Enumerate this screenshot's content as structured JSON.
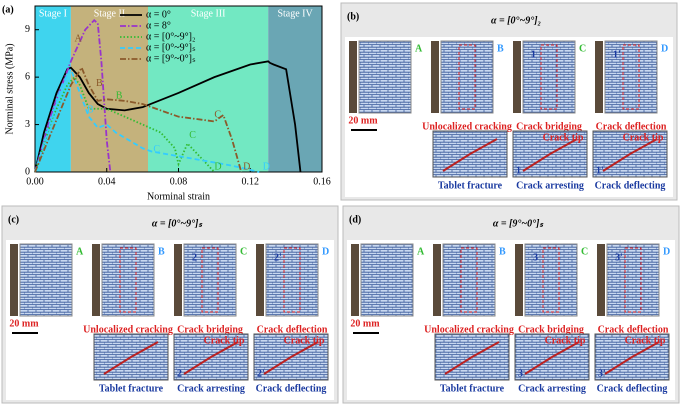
{
  "chart_data": {
    "type": "line",
    "label": "(a)",
    "x_label": "Norminal strain",
    "y_label": "Norminal stress (MPa)",
    "xlim": [
      0,
      0.16
    ],
    "xticks": [
      {
        "value": 0,
        "label": "0.00"
      },
      0.04,
      0.08,
      0.12,
      0.16
    ],
    "ylim": [
      0,
      10.5
    ],
    "yticks": [
      0,
      3,
      6,
      9
    ],
    "stages": [
      {
        "name": "Stage I",
        "start": 0,
        "end": 0.02,
        "color": "#3fd4ee"
      },
      {
        "name": "Stage II",
        "start": 0.02,
        "end": 0.063,
        "color": "#c4b27c"
      },
      {
        "name": "Stage III",
        "start": 0.063,
        "end": 0.13,
        "color": "#72e8c2"
      },
      {
        "name": "Stage IV",
        "start": 0.13,
        "end": 0.16,
        "color": "#6aa6b4"
      }
    ],
    "series": [
      {
        "name": "α = 0°",
        "color": "#000000",
        "dash": "solid",
        "x": [
          0,
          0.005,
          0.012,
          0.018,
          0.02,
          0.025,
          0.03,
          0.035,
          0.04,
          0.05,
          0.06,
          0.08,
          0.1,
          0.12,
          0.13,
          0.131,
          0.133,
          0.14,
          0.145,
          0.148
        ],
        "values": [
          0,
          2.5,
          5,
          6.5,
          6.6,
          6,
          5,
          4.3,
          4,
          3.9,
          4.1,
          5,
          6,
          6.8,
          7,
          6.9,
          6.8,
          6.5,
          3,
          0
        ]
      },
      {
        "name": "α = 8°",
        "color": "#9933cc",
        "dash": "dashdot",
        "x": [
          0,
          0.01,
          0.02,
          0.028,
          0.033,
          0.035,
          0.037,
          0.04,
          0.042
        ],
        "values": [
          0,
          4,
          7,
          9,
          9.6,
          9.4,
          7,
          2,
          0
        ]
      },
      {
        "name": "α = [0°~9°]₂",
        "color": "#33bb33",
        "dash": "dotted",
        "x": [
          0,
          0.01,
          0.018,
          0.022,
          0.025,
          0.03,
          0.04,
          0.05,
          0.06,
          0.07,
          0.078,
          0.08,
          0.085,
          0.09,
          0.1
        ],
        "values": [
          0,
          3.5,
          5.5,
          6,
          5.5,
          4,
          4,
          3.5,
          3,
          2.5,
          1.5,
          0.5,
          1.8,
          1.2,
          0
        ]
      },
      {
        "name": "α = [0°~9°]ₛ",
        "color": "#33ccff",
        "dash": "dashed",
        "x": [
          0,
          0.015,
          0.02,
          0.025,
          0.03,
          0.035,
          0.04,
          0.045,
          0.06,
          0.065,
          0.09,
          0.11,
          0.125
        ],
        "values": [
          0,
          5.5,
          6.5,
          5,
          3.5,
          2.8,
          3,
          2.5,
          1.5,
          1.3,
          0.8,
          0.4,
          0
        ]
      },
      {
        "name": "α = [9°~0°]ₛ",
        "color": "#8b5a2b",
        "dash": "dashdot",
        "x": [
          0,
          0.02,
          0.026,
          0.03,
          0.035,
          0.04,
          0.05,
          0.06,
          0.08,
          0.1,
          0.105,
          0.11,
          0.115
        ],
        "values": [
          0,
          5.5,
          6.6,
          5.5,
          4.5,
          4.6,
          4.5,
          4.3,
          3.5,
          3.2,
          3.6,
          2,
          0
        ]
      }
    ],
    "annotations": [
      {
        "text": "A",
        "x": 0.022,
        "y": 8.4,
        "color": "#8b5a2b"
      },
      {
        "text": "B",
        "x": 0.034,
        "y": 5.6,
        "color": "#8b5a2b"
      },
      {
        "text": "B",
        "x": 0.045,
        "y": 4.8,
        "color": "#33bb33"
      },
      {
        "text": "B",
        "x": 0.029,
        "y": 3.9,
        "color": "#33ccff"
      },
      {
        "text": "C",
        "x": 0.1,
        "y": 3.6,
        "color": "#8b5a2b"
      },
      {
        "text": "C",
        "x": 0.086,
        "y": 2.3,
        "color": "#33bb33"
      },
      {
        "text": "C",
        "x": 0.066,
        "y": 1.4,
        "color": "#33ccff"
      },
      {
        "text": "D",
        "x": 0.1,
        "y": 0.3,
        "color": "#33bb33"
      },
      {
        "text": "D",
        "x": 0.116,
        "y": 0.3,
        "color": "#8b5a2b"
      },
      {
        "text": "D",
        "x": 0.127,
        "y": 0.3,
        "color": "#33ccff"
      }
    ],
    "legend": "top"
  },
  "panels": [
    {
      "label": "(b)",
      "title": "α = [0°~9°]₂",
      "stage_labels": [
        "A",
        "B",
        "C",
        "D"
      ],
      "scale_bar": "20 mm",
      "captions": [
        "Unlocalized cracking",
        "Crack bridging",
        "Crack deflection"
      ],
      "markers": [
        "1",
        "1'"
      ],
      "insets": [
        {
          "caption": "Tablet fracture"
        },
        {
          "caption": "Crack arresting",
          "marker": "1",
          "note": "Crack tip"
        },
        {
          "caption": "Crack deflecting",
          "marker": "1'",
          "note": "Crack tip"
        }
      ]
    },
    {
      "label": "(c)",
      "title": "α = [0°~9°]ₛ",
      "stage_labels": [
        "A",
        "B",
        "C",
        "D"
      ],
      "scale_bar": "20 mm",
      "captions": [
        "Unlocalized cracking",
        "Crack bridging",
        "Crack deflection"
      ],
      "markers": [
        "2",
        "2'"
      ],
      "insets": [
        {
          "caption": "Tablet fracture"
        },
        {
          "caption": "Crack arresting",
          "marker": "2",
          "note": "Crack tip"
        },
        {
          "caption": "Crack deflecting",
          "marker": "2'",
          "note": "Crack tip"
        }
      ]
    },
    {
      "label": "(d)",
      "title": "α = [9°~0°]ₛ",
      "stage_labels": [
        "A",
        "B",
        "C",
        "D"
      ],
      "scale_bar": "20 mm",
      "captions": [
        "Unlocalized cracking",
        "Crack bridging",
        "Crack deflection"
      ],
      "markers": [
        "3",
        "3'"
      ],
      "insets": [
        {
          "caption": "Tablet fracture"
        },
        {
          "caption": "Crack arresting",
          "marker": "3",
          "note": "Crack tip"
        },
        {
          "caption": "Crack deflecting",
          "marker": "3'",
          "note": "Crack tip"
        }
      ]
    }
  ]
}
